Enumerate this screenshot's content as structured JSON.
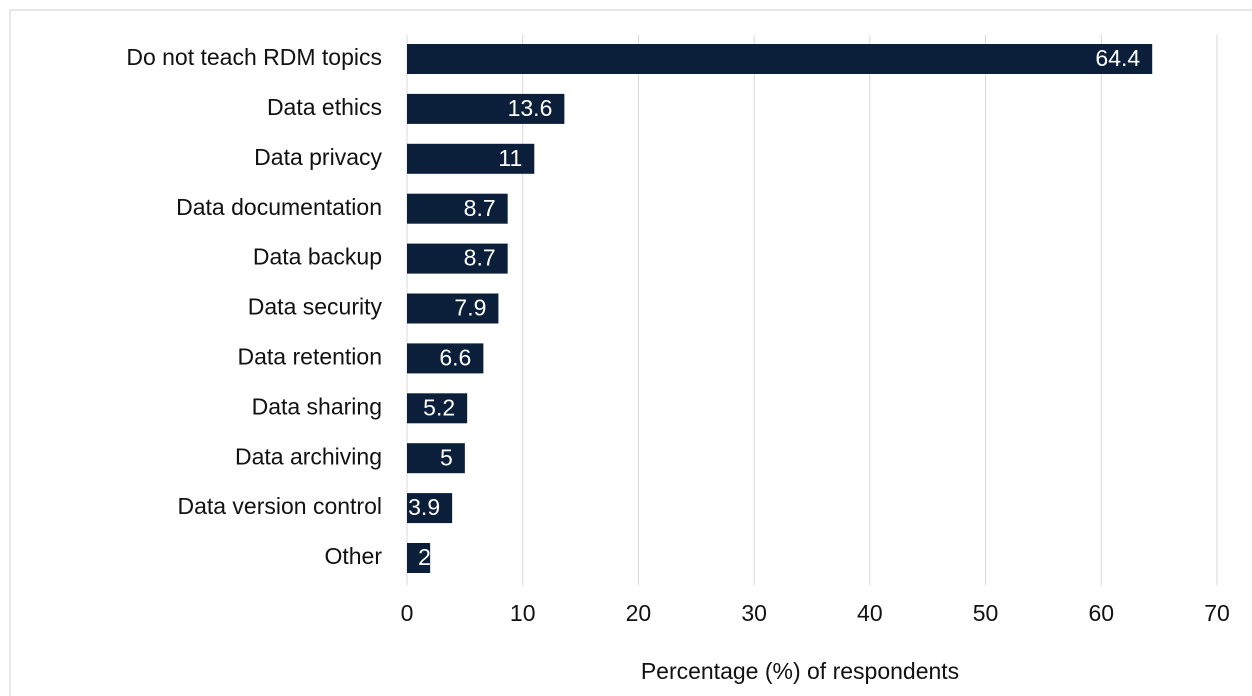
{
  "chart_data": {
    "type": "hbar",
    "categories": [
      "Do not teach RDM topics",
      "Data ethics",
      "Data privacy",
      "Data documentation",
      "Data backup",
      "Data security",
      "Data retention",
      "Data sharing",
      "Data archiving",
      "Data version control",
      "Other"
    ],
    "values": [
      64.4,
      13.6,
      11,
      8.7,
      8.7,
      7.9,
      6.6,
      5.2,
      5,
      3.9,
      2
    ],
    "color": "#0b1f3a",
    "xlabel": "Percentage (%) of respondents",
    "xlim": [
      0,
      70
    ],
    "xticks": [
      0,
      10,
      20,
      30,
      40,
      50,
      60,
      70
    ],
    "grid": true
  }
}
